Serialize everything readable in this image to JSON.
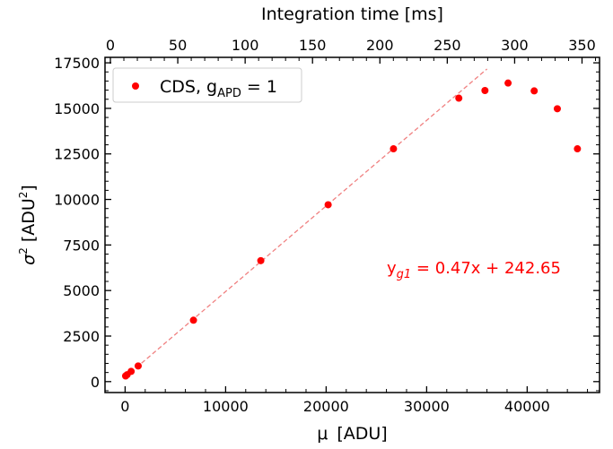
{
  "chart_data": {
    "type": "scatter",
    "xlabel_main": "μ",
    "xlabel_unit": "[ADU]",
    "ylabel_symbol": "σ",
    "ylabel_sup": "2",
    "ylabel_unit_pre": "[ADU",
    "ylabel_unit_sup": "2",
    "ylabel_unit_post": "]",
    "top_xlabel": "Integration time [ms]",
    "xlim": [
      -2000,
      47200
    ],
    "ylim": [
      -600,
      17800
    ],
    "top_xlim": [
      -4,
      363
    ],
    "x_ticks": [
      0,
      10000,
      20000,
      30000,
      40000
    ],
    "x_tick_labels": [
      "0",
      "10000",
      "20000",
      "30000",
      "40000"
    ],
    "y_ticks": [
      0,
      2500,
      5000,
      7500,
      10000,
      12500,
      15000,
      17500
    ],
    "y_tick_labels": [
      "0",
      "2500",
      "5000",
      "7500",
      "10000",
      "12500",
      "15000",
      "17500"
    ],
    "top_ticks": [
      0,
      50,
      100,
      150,
      200,
      250,
      300,
      350
    ],
    "top_tick_labels": [
      "0",
      "50",
      "100",
      "150",
      "200",
      "250",
      "300",
      "350"
    ],
    "legend_position": "top-left",
    "grid": false,
    "colors": {
      "points": "#ff0000",
      "fit": "#f08080"
    },
    "series": [
      {
        "name_main": "CDS, g",
        "name_sub": "APD",
        "name_post": " = 1",
        "x": [
          50,
          200,
          600,
          1300,
          6800,
          13500,
          20200,
          26700,
          33200,
          35800,
          38100,
          40700,
          43000,
          45000
        ],
        "y": [
          310,
          380,
          560,
          860,
          3370,
          6640,
          9710,
          12780,
          15560,
          15980,
          16390,
          15960,
          14980,
          12780
        ]
      }
    ],
    "fit_line": {
      "label_pre": "y",
      "label_sub": "g1",
      "label_post": " = 0.47x + 242.65",
      "slope": 0.47,
      "intercept": 242.65,
      "x_range": [
        0,
        36000
      ]
    }
  }
}
